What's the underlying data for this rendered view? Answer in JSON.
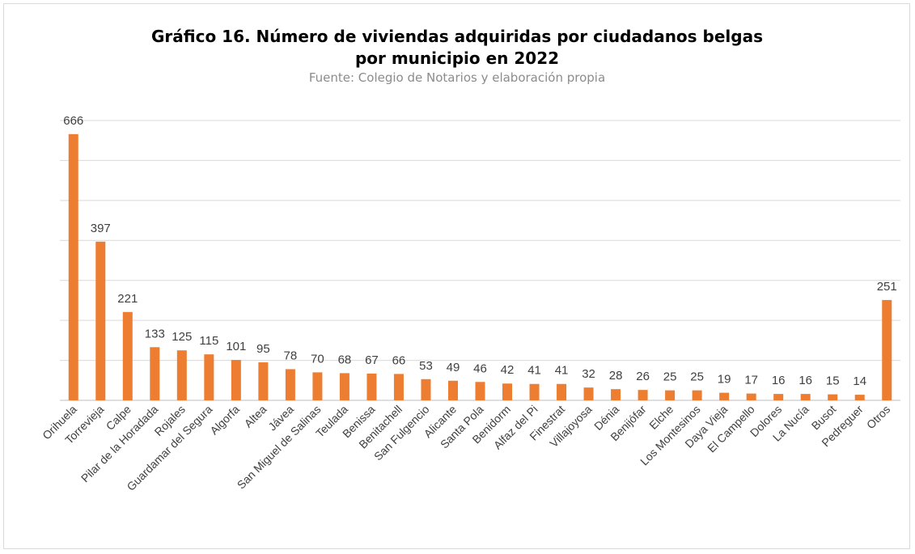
{
  "chart_data": {
    "type": "bar",
    "title": "Gráfico 16. Número de viviendas adquiridas por ciudadanos belgas por municipio en 2022",
    "subtitle": "Fuente: Colegio de Notarios y elaboración propia",
    "categories": [
      "Orihuela",
      "Torrevieja",
      "Calpe",
      "Pilar de la Horadada",
      "Rojales",
      "Guardamar del Segura",
      "Algorfa",
      "Altea",
      "Jávea",
      "San Miguel de Salinas",
      "Teulada",
      "Benissa",
      "Benitachell",
      "San Fulgencio",
      "Alicante",
      "Santa Pola",
      "Benidorm",
      "Alfaz del Pi",
      "Finestrat",
      "Villajoyosa",
      "Dénia",
      "Benijófar",
      "Elche",
      "Los Montesinos",
      "Daya Vieja",
      "El Campello",
      "Dolores",
      "La Nucía",
      "Busot",
      "Pedreguer",
      "Otros"
    ],
    "values": [
      666,
      397,
      221,
      133,
      125,
      115,
      101,
      95,
      78,
      70,
      68,
      67,
      66,
      53,
      49,
      46,
      42,
      41,
      41,
      32,
      28,
      26,
      25,
      25,
      19,
      17,
      16,
      16,
      15,
      14,
      251
    ],
    "color": "#ed7d31",
    "ylim": [
      0,
      700
    ],
    "yticks": [
      0,
      100,
      200,
      300,
      400,
      500,
      600,
      700
    ],
    "grid": true
  }
}
